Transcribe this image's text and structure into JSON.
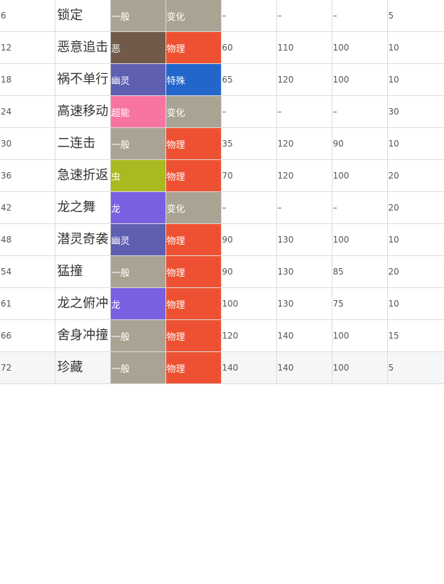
{
  "table": {
    "rows": [
      [
        "6",
        "锁定",
        "一般",
        "变化",
        "–",
        "–",
        "–",
        5
      ],
      [
        12,
        "恶意追击",
        "恶",
        "物理",
        60,
        110,
        100,
        10
      ],
      [
        18,
        "祸不单行",
        "幽灵",
        "特殊",
        65,
        120,
        100,
        10
      ],
      [
        24,
        "高速移动",
        "超能",
        "变化",
        "–",
        "–",
        "–",
        30
      ],
      [
        30,
        "二连击",
        "一般",
        "物理",
        35,
        120,
        90,
        10
      ],
      [
        36,
        "急速折返",
        "虫",
        "物理",
        70,
        120,
        100,
        20
      ],
      [
        42,
        "龙之舞",
        "龙",
        "变化",
        "–",
        "–",
        "–",
        20
      ],
      [
        48,
        "潜灵奇袭",
        "幽灵",
        "物理",
        90,
        130,
        100,
        10
      ],
      [
        54,
        "猛撞",
        "一般",
        "物理",
        90,
        130,
        85,
        20
      ],
      [
        61,
        "龙之俯冲",
        "龙",
        "物理",
        100,
        130,
        75,
        10
      ],
      [
        66,
        "舍身冲撞",
        "一般",
        "物理",
        120,
        140,
        100,
        15
      ],
      [
        72,
        "珍藏",
        "一般",
        "物理",
        140,
        140,
        100,
        5
      ]
    ],
    "cell_colors": [
      [
        "#aaa393",
        "#aaa393"
      ],
      [
        "#725a4a",
        "#ee5132"
      ],
      [
        "#5f5fb1",
        "#2266cc"
      ],
      [
        "#f774a2",
        "#aaa393"
      ],
      [
        "#aaa393",
        "#ee5132"
      ],
      [
        "#a9ba21",
        "#ee5132"
      ],
      [
        "#7860e0",
        "#aaa393"
      ],
      [
        "#5f5fb1",
        "#ee5132"
      ],
      [
        "#aaa393",
        "#ee5132"
      ],
      [
        "#7860e0",
        "#ee5132"
      ],
      [
        "#aaa393",
        "#ee5132"
      ],
      [
        "#aaa393",
        "#ee5132"
      ]
    ]
  }
}
